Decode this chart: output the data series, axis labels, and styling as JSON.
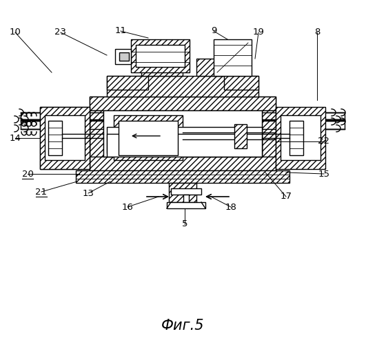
{
  "title": "Фиг.5",
  "bg": "#ffffff",
  "lw": 1.0,
  "lw_thin": 0.6,
  "hatch": "////"
}
